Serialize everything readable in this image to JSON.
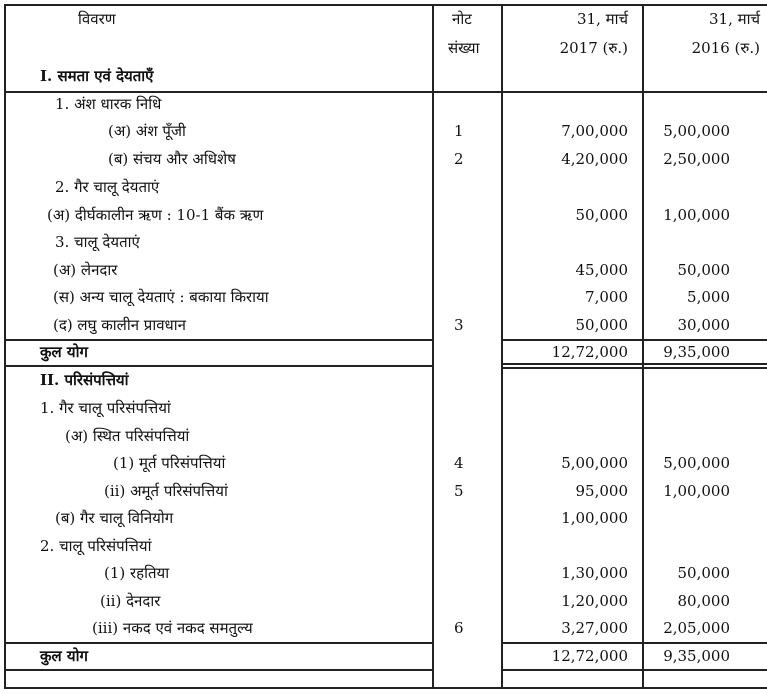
{
  "header": {
    "description": "विवरण",
    "note_line1": "नोट",
    "note_line2": "संख्या",
    "col_current_line1": "31, मार्च",
    "col_current_line2": "2017 (रु.)",
    "col_previous_line1": "31, मार्च",
    "col_previous_line2": "2016 (रु.)"
  },
  "rows": [
    {
      "label": "I. समता एवं देयताएँ",
      "note": "",
      "current": "",
      "previous": "",
      "bold": true
    },
    {
      "label": "1.   अंश धारक निधि",
      "note": "",
      "current": "",
      "previous": ""
    },
    {
      "label": "(अ) अंश पूँजी",
      "note": "1",
      "current": "7,00,000",
      "previous": "5,00,000"
    },
    {
      "label": "(ब) संचय और अधिशेष",
      "note": "2",
      "current": "4,20,000",
      "previous": "2,50,000"
    },
    {
      "label": "2. गैर चालू देयताएं",
      "note": "",
      "current": "",
      "previous": ""
    },
    {
      "label": "(अ) दीर्घकालीन ऋण : 10-1 बैंक ऋण",
      "note": "",
      "current": "50,000",
      "previous": "1,00,000"
    },
    {
      "label": "3. चालू देयताएं",
      "note": "",
      "current": "",
      "previous": ""
    },
    {
      "label": "(अ) लेनदार",
      "note": "",
      "current": "45,000",
      "previous": "50,000"
    },
    {
      "label": "(स) अन्य चालू देयताएं : बकाया किराया",
      "note": "",
      "current": "7,000",
      "previous": "5,000"
    },
    {
      "label": "(द) लघु कालीन प्रावधान",
      "note": "3",
      "current": "50,000",
      "previous": "30,000"
    },
    {
      "label": "कुल योग",
      "note": "",
      "current": "12,72,000",
      "previous": "9,35,000",
      "bold": true
    },
    {
      "label": "II.  परिसंपत्तियां",
      "note": "",
      "current": "",
      "previous": "",
      "bold": true
    },
    {
      "label": "1. गैर चालू परिसंपत्तियां",
      "note": "",
      "current": "",
      "previous": ""
    },
    {
      "label": "(अ) स्थित परिसंपत्तियां",
      "note": "",
      "current": "",
      "previous": ""
    },
    {
      "label": "(1) मूर्त परिसंपत्तियां",
      "note": "4",
      "current": "5,00,000",
      "previous": "5,00,000"
    },
    {
      "label": "(ii) अमूर्त परिसंपत्तियां",
      "note": "5",
      "current": "95,000",
      "previous": "1,00,000"
    },
    {
      "label": "(ब) गैर चालू विनियोग",
      "note": "",
      "current": "1,00,000",
      "previous": ""
    },
    {
      "label": "2. चालू परिसंपत्तियां",
      "note": "",
      "current": "",
      "previous": ""
    },
    {
      "label": "(1) रहतिया",
      "note": "",
      "current": "1,30,000",
      "previous": "50,000"
    },
    {
      "label": "(ii) देनदार",
      "note": "",
      "current": "1,20,000",
      "previous": "80,000"
    },
    {
      "label": "(iii) नकद एवं नकद समतुल्य",
      "note": "6",
      "current": "3,27,000",
      "previous": "2,05,000"
    },
    {
      "label": "कुल योग",
      "note": "",
      "current": "12,72,000",
      "previous": "9,35,000",
      "bold": true
    }
  ]
}
